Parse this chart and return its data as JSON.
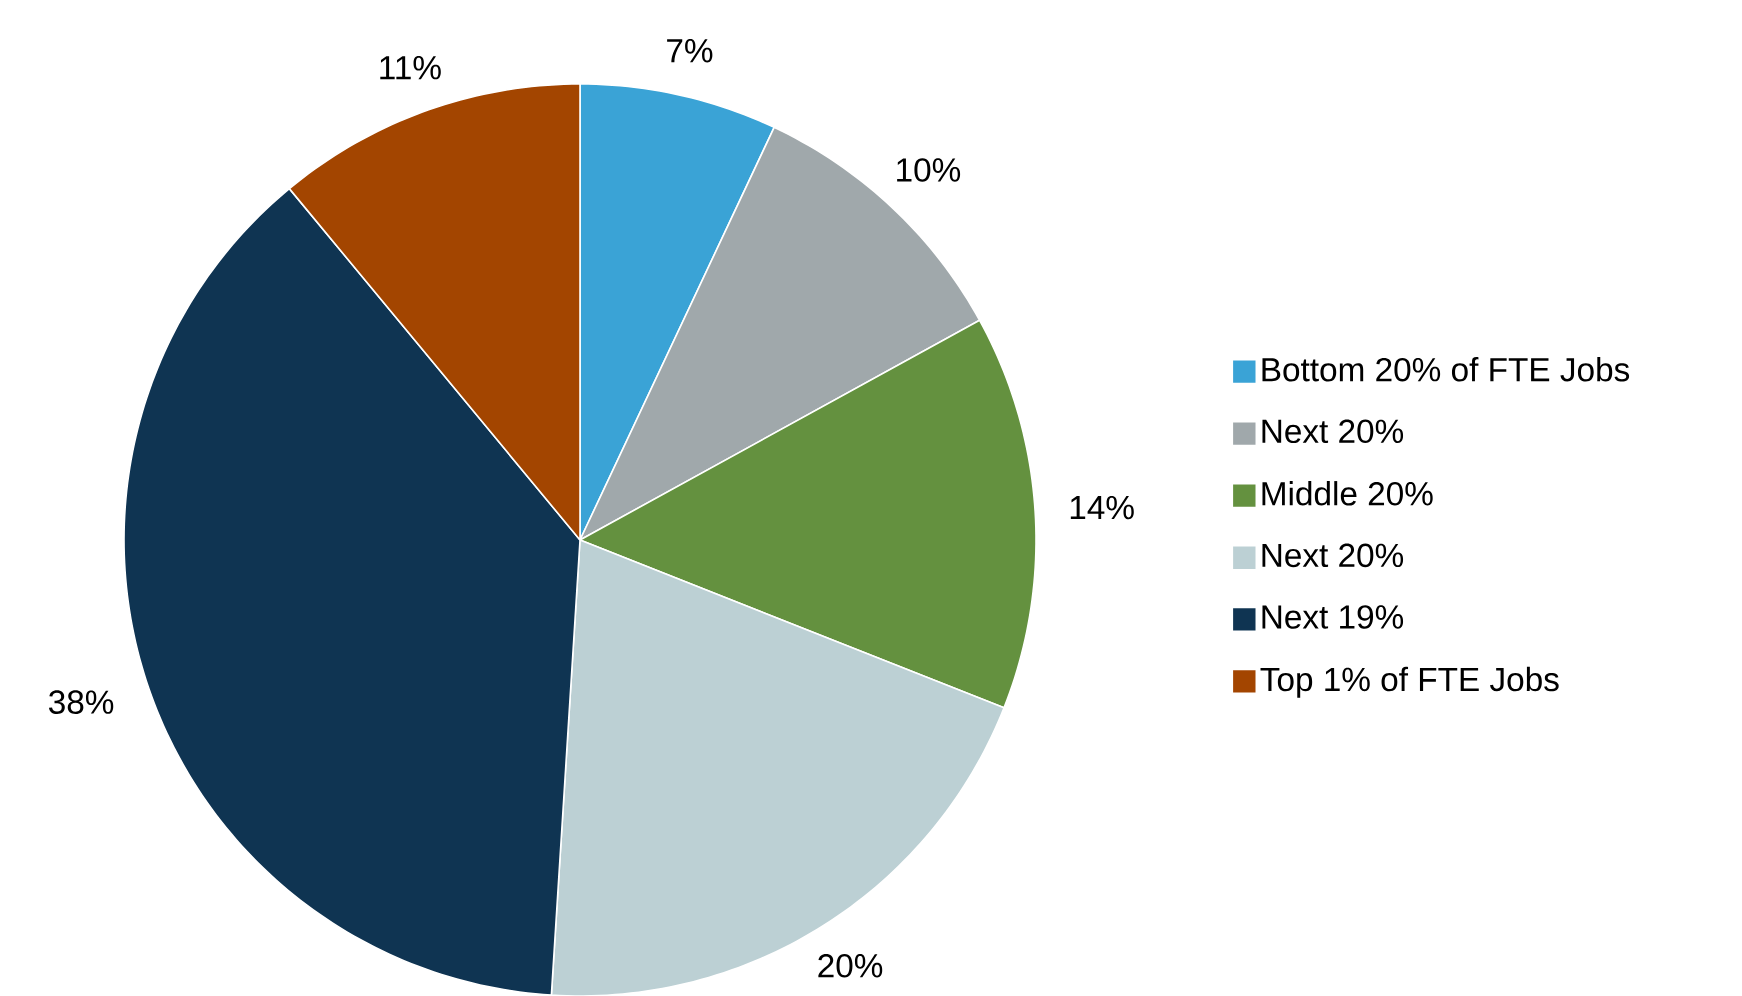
{
  "chart_data": {
    "type": "pie",
    "categories": [
      "Bottom 20% of FTE Jobs",
      "Next 20%",
      "Middle 20%",
      "Next 20%",
      "Next 19%",
      "Top 1% of FTE Jobs"
    ],
    "values": [
      7,
      10,
      14,
      20,
      38,
      11
    ],
    "value_labels": [
      "7%",
      "10%",
      "14%",
      "20%",
      "38%",
      "11%"
    ],
    "colors": [
      "#3aa3d6",
      "#a0a8ab",
      "#64913f",
      "#bcd0d4",
      "#0f3452",
      "#a34500"
    ],
    "legend": "right"
  }
}
